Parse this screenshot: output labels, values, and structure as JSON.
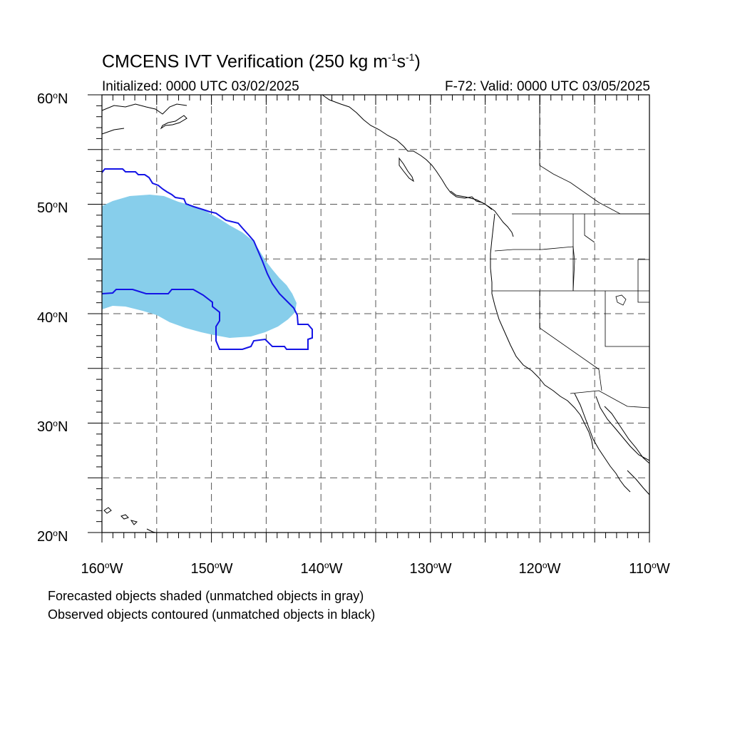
{
  "header": {
    "title_main": "CMCENS IVT Verification (250 kg m",
    "title_exp1": "-1",
    "title_mid": "s",
    "title_exp2": "-1",
    "title_end": ")",
    "init": "Initialized: 0000 UTC 03/02/2025",
    "valid": "F-72: Valid: 0000 UTC 03/05/2025"
  },
  "lat_labels": [
    {
      "value": "60",
      "suffix": "N"
    },
    {
      "value": "50",
      "suffix": "N"
    },
    {
      "value": "40",
      "suffix": "N"
    },
    {
      "value": "30",
      "suffix": "N"
    },
    {
      "value": "20",
      "suffix": "N"
    }
  ],
  "lon_labels": [
    {
      "value": "160",
      "suffix": "W"
    },
    {
      "value": "150",
      "suffix": "W"
    },
    {
      "value": "140",
      "suffix": "W"
    },
    {
      "value": "130",
      "suffix": "W"
    },
    {
      "value": "120",
      "suffix": "W"
    },
    {
      "value": "110",
      "suffix": "W"
    }
  ],
  "footer": {
    "line1": "Forecasted objects shaded (unmatched objects in gray)",
    "line2": "Observed objects contoured (unmatched objects in black)"
  },
  "map": {
    "lat_range": [
      20,
      60
    ],
    "lon_range": [
      -160,
      -110
    ],
    "grid_spacing_deg": 5,
    "forecast_color": "#87ceeb",
    "observed_color": "#1414e6",
    "coast_color": "#000000"
  }
}
